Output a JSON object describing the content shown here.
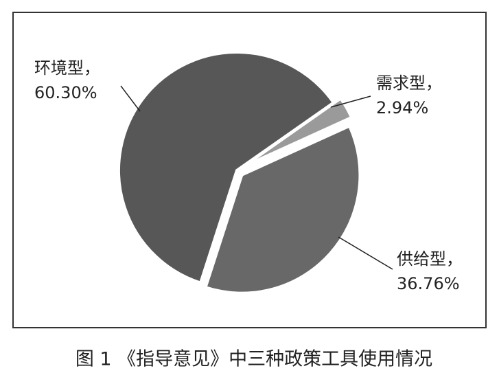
{
  "chart_data": {
    "type": "pie",
    "title": "图 1 《指导意见》中三种政策工具使用情况",
    "categories": [
      "需求型，",
      "供给型，",
      "环境型，"
    ],
    "values": [
      2.94,
      36.76,
      60.3
    ],
    "value_labels": [
      "2.94%",
      "36.76%",
      "60.30%"
    ],
    "colors": [
      "#9a9a9a",
      "#686868",
      "#575757"
    ]
  }
}
